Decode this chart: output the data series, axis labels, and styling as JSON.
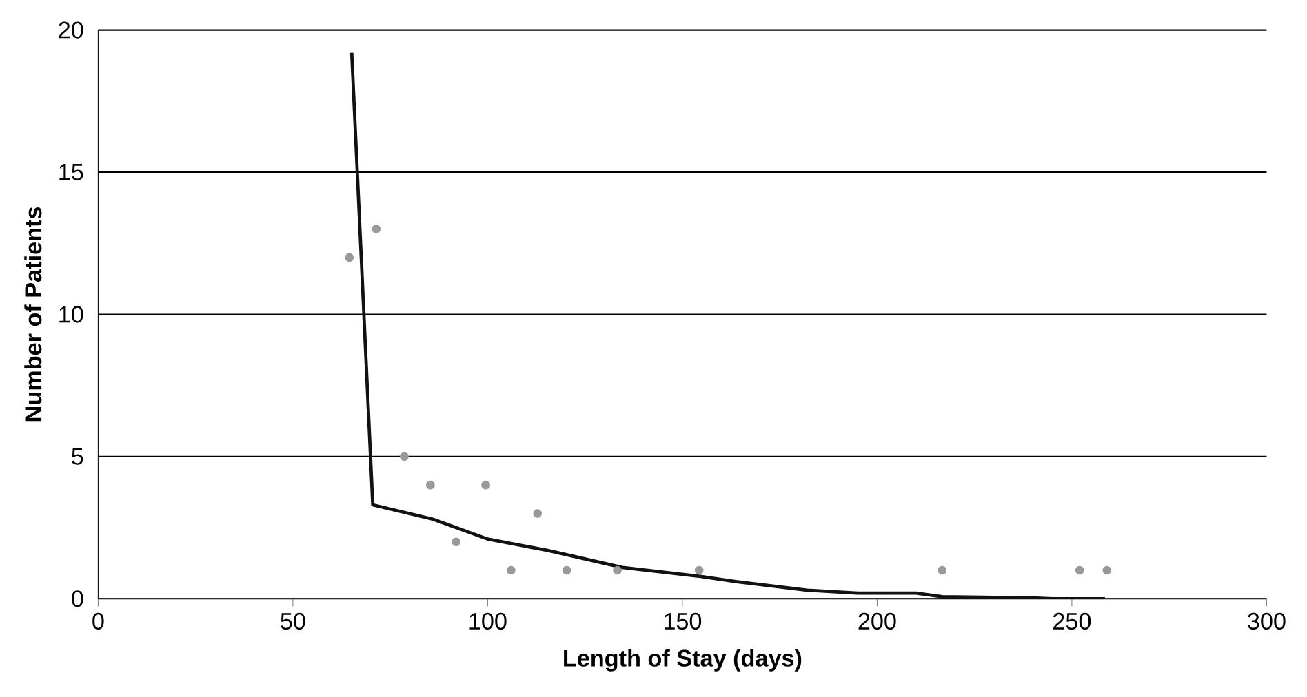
{
  "chart_data": {
    "type": "scatter",
    "xlabel": "Length of Stay (days)",
    "ylabel": "Number of Patients",
    "xlim": [
      0,
      300
    ],
    "ylim": [
      0,
      20
    ],
    "xticks": [
      0,
      50,
      100,
      150,
      200,
      250,
      300
    ],
    "yticks": [
      0,
      5,
      10,
      15,
      20
    ],
    "grid": "y",
    "series": [
      {
        "marker": "circle",
        "color": "#999999",
        "x": [
          64.5,
          71.4,
          78.6,
          85.3,
          91.9,
          99.5,
          106,
          112.8,
          120.3,
          133.3,
          154.3,
          216.7,
          252,
          259
        ],
        "values": [
          12,
          13,
          5,
          4,
          2,
          4,
          1,
          3,
          1,
          1,
          1,
          1,
          1,
          1
        ]
      },
      {
        "type": "line",
        "marker": "none",
        "color": "#111111",
        "x": [
          65.1,
          70.5,
          85.9,
          100,
          115.4,
          134.6,
          153.8,
          164,
          182,
          195,
          210,
          216.7,
          240,
          245,
          258.5
        ],
        "values": [
          19.2,
          3.3,
          2.8,
          2.1,
          1.7,
          1.1,
          0.8,
          0.6,
          0.3,
          0.2,
          0.2,
          0.07,
          0.03,
          0,
          0
        ]
      }
    ]
  }
}
